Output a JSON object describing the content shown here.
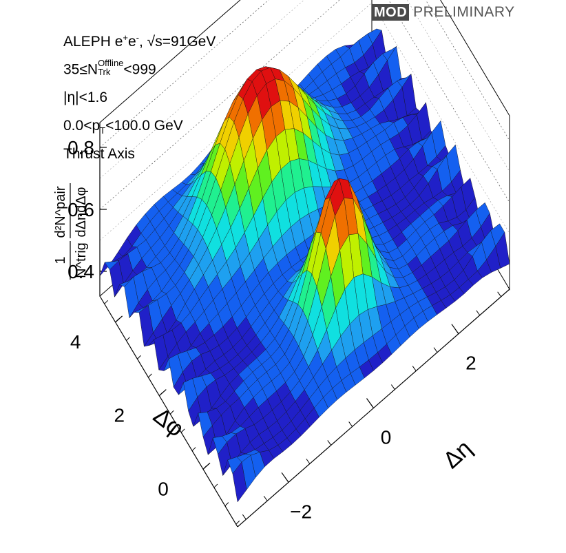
{
  "badge": {
    "mod": "MOD",
    "prelim": "PRELIMINARY"
  },
  "labels": {
    "l1_a": "ALEPH e",
    "l1_sup1": "+",
    "l1_b": "e",
    "l1_sup2": "-",
    "l1_c": ", √s=91GeV",
    "l2_a": "35≤N",
    "l2_sup": "Offline",
    "l2_sub": "Trk",
    "l2_b": "<999",
    "l3": "|η|<1.6",
    "l4_a": "0.0<p",
    "l4_sub": "T",
    "l4_b": "<100.0 GeV",
    "l5": "Thrust Axis"
  },
  "chart_data": {
    "type": "surface",
    "title": "",
    "xlabel": "Δη",
    "ylabel": "Δφ",
    "zlabel_num": "d²N^pair",
    "zlabel_den": "dΔηdΔφ",
    "zlabel_prefix_num": "1",
    "zlabel_prefix_den": "N^trig",
    "x_range": [
      -3.2,
      3.2
    ],
    "y_range": [
      -1.57,
      4.71
    ],
    "z_range": [
      0.32,
      0.88
    ],
    "x_ticks": [
      {
        "v": -2,
        "label": "−2"
      },
      {
        "v": 0,
        "label": "0"
      },
      {
        "v": 2,
        "label": "2"
      }
    ],
    "y_ticks": [
      {
        "v": 0,
        "label": "0"
      },
      {
        "v": 2,
        "label": "2"
      },
      {
        "v": 4,
        "label": "4"
      }
    ],
    "z_ticks": [
      {
        "v": 0.4,
        "label": "0.4"
      },
      {
        "v": 0.6,
        "label": "0.6"
      },
      {
        "v": 0.8,
        "label": "0.8"
      }
    ],
    "grid": true,
    "baseline": 0.44,
    "peaks": [
      {
        "deta": 0.0,
        "dphi": 0.0,
        "height": 0.86,
        "sigma_eta": 0.55,
        "sigma_phi": 0.55
      },
      {
        "deta": -0.2,
        "dphi": 3.14,
        "height": 0.88,
        "sigma_eta": 0.9,
        "sigma_phi": 0.75
      }
    ],
    "colorscale": [
      "#2020c8",
      "#1460f0",
      "#1ea0f0",
      "#10e0e0",
      "#20f090",
      "#60f020",
      "#c0f000",
      "#f0d000",
      "#f07000",
      "#e01010"
    ]
  }
}
